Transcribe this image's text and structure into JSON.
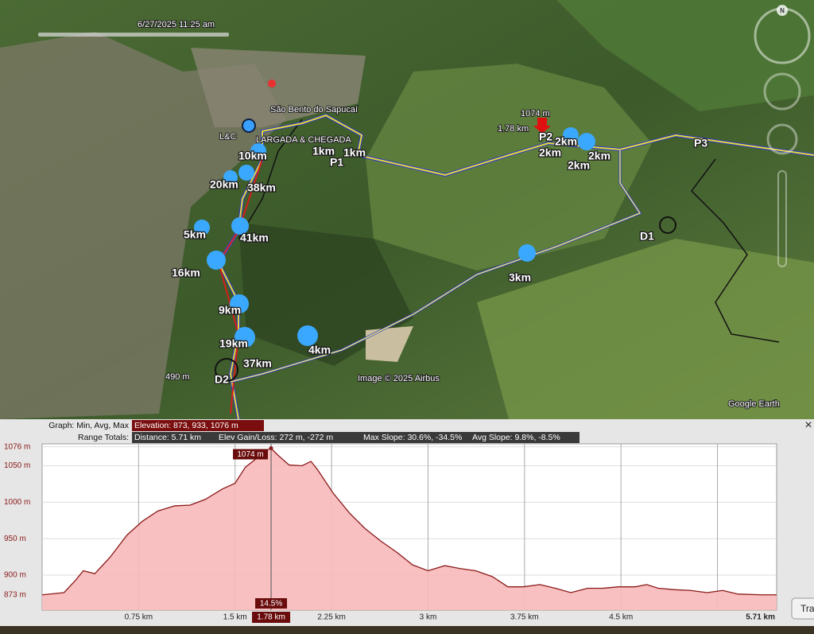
{
  "map": {
    "timestamp": "6/27/2025 11:25 am",
    "compass": "N",
    "labels": [
      "São Bento do Sapucaí",
      "LARGADA & CHEGADA",
      "L&C",
      "10km",
      "1km",
      "1km",
      "P1",
      "20km",
      "38km",
      "1074 m",
      "1.78 km",
      "P2",
      "2km",
      "2km",
      "2km",
      "2km",
      "P3",
      "5km",
      "41km",
      "D1",
      "16km",
      "3km",
      "9km",
      "19km",
      "4km",
      "37km",
      "490 m",
      "D2"
    ],
    "copyright": "Image © 2025 Airbus",
    "brand": "Google Earth",
    "button": "Tra"
  },
  "profile_info": {
    "graph_label": "Graph: Min, Avg, Max",
    "elevation": "Elevation: 873, 933, 1076 m",
    "range_label": "Range Totals:",
    "distance": "Distance: 5.71 km",
    "gain_loss": "Elev Gain/Loss: 272 m, -272 m",
    "max_slope": "Max Slope: 30.6%, -34.5%",
    "avg_slope": "Avg Slope: 9.8%, -8.5%",
    "close": "×"
  },
  "chart_data": {
    "type": "area",
    "x": [
      0,
      0.17,
      0.26,
      0.32,
      0.41,
      0.53,
      0.66,
      0.78,
      0.9,
      1.03,
      1.15,
      1.27,
      1.4,
      1.5,
      1.58,
      1.68,
      1.74,
      1.78,
      1.83,
      1.92,
      2.02,
      2.09,
      2.14,
      2.26,
      2.39,
      2.51,
      2.63,
      2.76,
      2.88,
      3.0,
      3.13,
      3.25,
      3.37,
      3.5,
      3.62,
      3.74,
      3.87,
      3.99,
      4.11,
      4.24,
      4.36,
      4.48,
      4.61,
      4.7,
      4.79,
      4.92,
      5.04,
      5.17,
      5.29,
      5.41,
      5.6,
      5.71
    ],
    "values": [
      873,
      876,
      893,
      906,
      902,
      925,
      955,
      974,
      988,
      995,
      996,
      1004,
      1018,
      1026,
      1048,
      1062,
      1071,
      1074,
      1065,
      1051,
      1050,
      1056,
      1045,
      1013,
      985,
      964,
      947,
      931,
      914,
      906,
      913,
      909,
      906,
      898,
      884,
      884,
      887,
      882,
      876,
      882,
      882,
      884,
      884,
      887,
      882,
      880,
      879,
      876,
      879,
      874,
      873,
      873
    ],
    "color": "#8b1a1a",
    "fill": "#f7b9b9",
    "xlim": [
      0,
      5.71
    ],
    "ylim": [
      852,
      1080
    ],
    "xticks": [
      {
        "value": 0.75,
        "label": "0.75 km"
      },
      {
        "value": 1.5,
        "label": "1.5 km"
      },
      {
        "value": 2.25,
        "label": "2.25 km"
      },
      {
        "value": 3,
        "label": "3 km"
      },
      {
        "value": 3.75,
        "label": "3.75 km"
      },
      {
        "value": 4.5,
        "label": "4.5 km"
      },
      {
        "value": 5.25,
        "label": null
      },
      {
        "value": 5.71,
        "label": "5.71 km"
      }
    ],
    "yticks": [
      {
        "value": 873,
        "label": "873 m"
      },
      {
        "value": 900,
        "label": "900 m"
      },
      {
        "value": 950,
        "label": "950 m"
      },
      {
        "value": 1000,
        "label": "1000 m"
      },
      {
        "value": 1050,
        "label": "1050 m"
      },
      {
        "value": 1076,
        "label": "1076 m"
      }
    ],
    "grid": true,
    "cursor": {
      "x": 1.78,
      "x_label": "1.78 km",
      "value": 1074,
      "value_label": "1074 m",
      "slope_label": "14.5%"
    }
  }
}
